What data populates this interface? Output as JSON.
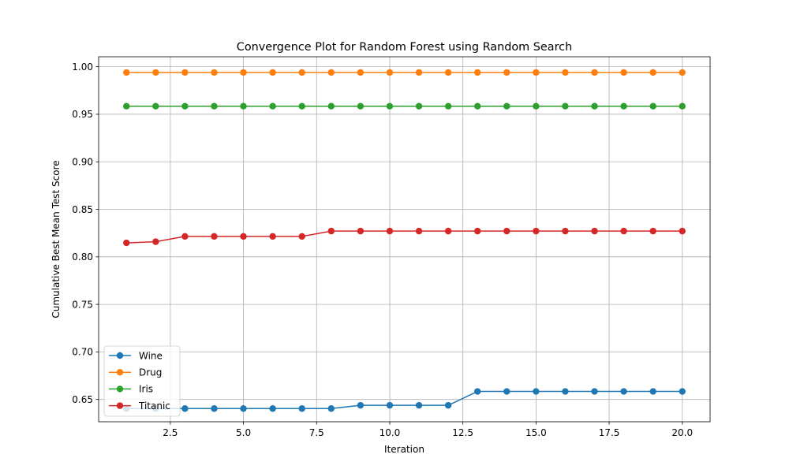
{
  "chart_data": {
    "type": "line",
    "title": "Convergence Plot for Random Forest using Random Search",
    "xlabel": "Iteration",
    "ylabel": "Cumulative Best Mean Test Score",
    "xlim": [
      0.05,
      20.95
    ],
    "ylim": [
      0.6265,
      1.0105
    ],
    "xticks": [
      2.5,
      5.0,
      7.5,
      10.0,
      12.5,
      15.0,
      17.5,
      20.0
    ],
    "xtick_labels": [
      "2.5",
      "5.0",
      "7.5",
      "10.0",
      "12.5",
      "15.0",
      "17.5",
      "20.0"
    ],
    "yticks": [
      0.65,
      0.7,
      0.75,
      0.8,
      0.85,
      0.9,
      0.95,
      1.0
    ],
    "ytick_labels": [
      "0.65",
      "0.70",
      "0.75",
      "0.80",
      "0.85",
      "0.90",
      "0.95",
      "1.00"
    ],
    "grid": true,
    "legend_position": "lower-left",
    "x": [
      1,
      2,
      3,
      4,
      5,
      6,
      7,
      8,
      9,
      10,
      11,
      12,
      13,
      14,
      15,
      16,
      17,
      18,
      19,
      20
    ],
    "series": [
      {
        "name": "Wine",
        "color": "#1f77b4",
        "marker": "circle",
        "values": [
          0.6404,
          0.6404,
          0.6404,
          0.6404,
          0.6404,
          0.6404,
          0.6404,
          0.6404,
          0.6438,
          0.6438,
          0.6438,
          0.6438,
          0.6584,
          0.6584,
          0.6584,
          0.6584,
          0.6584,
          0.6584,
          0.6584,
          0.6584
        ]
      },
      {
        "name": "Drug",
        "color": "#ff7f0e",
        "marker": "circle",
        "values": [
          0.994,
          0.994,
          0.994,
          0.994,
          0.994,
          0.994,
          0.994,
          0.994,
          0.994,
          0.994,
          0.994,
          0.994,
          0.994,
          0.994,
          0.994,
          0.994,
          0.994,
          0.994,
          0.994,
          0.994
        ]
      },
      {
        "name": "Iris",
        "color": "#2ca02c",
        "marker": "circle",
        "values": [
          0.9585,
          0.9585,
          0.9585,
          0.9585,
          0.9585,
          0.9585,
          0.9585,
          0.9585,
          0.9585,
          0.9585,
          0.9585,
          0.9585,
          0.9585,
          0.9585,
          0.9585,
          0.9585,
          0.9585,
          0.9585,
          0.9585,
          0.9585
        ]
      },
      {
        "name": "Titanic",
        "color": "#d62728",
        "marker": "circle",
        "values": [
          0.8147,
          0.8159,
          0.8215,
          0.8215,
          0.8215,
          0.8215,
          0.8215,
          0.8271,
          0.8271,
          0.8271,
          0.8271,
          0.8271,
          0.8271,
          0.8271,
          0.8271,
          0.8271,
          0.8271,
          0.8271,
          0.8271,
          0.8271
        ]
      }
    ]
  }
}
